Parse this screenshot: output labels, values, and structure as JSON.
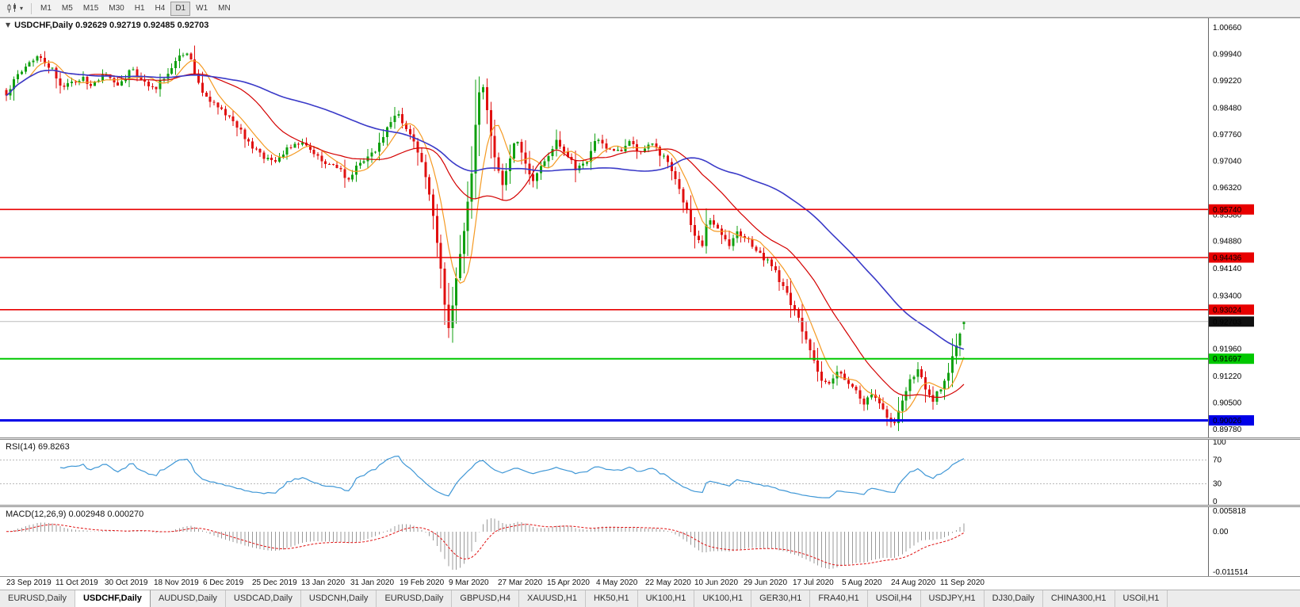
{
  "toolbar": {
    "timeframes": [
      {
        "label": "M1",
        "active": false
      },
      {
        "label": "M5",
        "active": false
      },
      {
        "label": "M15",
        "active": false
      },
      {
        "label": "M30",
        "active": false
      },
      {
        "label": "H1",
        "active": false
      },
      {
        "label": "H4",
        "active": false
      },
      {
        "label": "D1",
        "active": true
      },
      {
        "label": "W1",
        "active": false
      },
      {
        "label": "MN",
        "active": false
      }
    ]
  },
  "chart": {
    "marker_icon": "▼",
    "quote_line": "USDCHF,Daily 0.92629 0.92719 0.92485 0.92703",
    "price_axis": [
      "1.00660",
      "0.99940",
      "0.99220",
      "0.98480",
      "0.97760",
      "0.97040",
      "0.96320",
      "0.95580",
      "0.94880",
      "0.94140",
      "0.93400",
      "0.92660",
      "0.91960",
      "0.91220",
      "0.90500",
      "0.89780"
    ],
    "levels": [
      {
        "price": 0.9574,
        "label": "0.95740",
        "colorKey": "level_red",
        "width": 1.6
      },
      {
        "price": 0.94436,
        "label": "0.94436",
        "colorKey": "level_red",
        "width": 1.6
      },
      {
        "price": 0.93024,
        "label": "0.93024",
        "colorKey": "level_red",
        "width": 1.6
      },
      {
        "price": 0.91697,
        "label": "0.91697",
        "colorKey": "level_green",
        "width": 2
      },
      {
        "price": 0.90026,
        "label": "0.90026",
        "colorKey": "level_blue",
        "width": 3
      }
    ],
    "current_price": {
      "value": 0.92703,
      "label": "0.92703"
    }
  },
  "rsi": {
    "label": "RSI(14) 69.8263",
    "axis_labels": [
      "100",
      "70",
      "30",
      "0"
    ]
  },
  "macd": {
    "label": "MACD(12,26,9) 0.002948 0.000270",
    "axis_labels": [
      "0.005818",
      "0.00",
      "-0.011514"
    ]
  },
  "dates": [
    "23 Sep 2019",
    "11 Oct 2019",
    "30 Oct 2019",
    "18 Nov 2019",
    "6 Dec 2019",
    "25 Dec 2019",
    "13 Jan 2020",
    "31 Jan 2020",
    "19 Feb 2020",
    "9 Mar 2020",
    "27 Mar 2020",
    "15 Apr 2020",
    "4 May 2020",
    "22 May 2020",
    "10 Jun 2020",
    "29 Jun 2020",
    "17 Jul 2020",
    "5 Aug 2020",
    "24 Aug 2020",
    "11 Sep 2020"
  ],
  "tabs": [
    {
      "label": "EURUSD,Daily",
      "active": false
    },
    {
      "label": "USDCHF,Daily",
      "active": true
    },
    {
      "label": "AUDUSD,Daily",
      "active": false
    },
    {
      "label": "USDCAD,Daily",
      "active": false
    },
    {
      "label": "USDCNH,Daily",
      "active": false
    },
    {
      "label": "EURUSD,Daily",
      "active": false
    },
    {
      "label": "GBPUSD,H4",
      "active": false
    },
    {
      "label": "XAUUSD,H1",
      "active": false
    },
    {
      "label": "HK50,H1",
      "active": false
    },
    {
      "label": "UK100,H1",
      "active": false
    },
    {
      "label": "UK100,H1",
      "active": false
    },
    {
      "label": "GER30,H1",
      "active": false
    },
    {
      "label": "FRA40,H1",
      "active": false
    },
    {
      "label": "USOil,H4",
      "active": false
    },
    {
      "label": "USDJPY,H1",
      "active": false
    },
    {
      "label": "DJ30,Daily",
      "active": false
    },
    {
      "label": "CHINA300,H1",
      "active": false
    },
    {
      "label": "USOil,H1",
      "active": false
    }
  ],
  "colors": {
    "candle_up": "#10A010",
    "candle_down": "#E01010",
    "ma_fast": "#F59A23",
    "ma_mid": "#D40000",
    "ma_slow": "#3A3AC8",
    "rsi_line": "#3F97D6",
    "macd_bar": "#9A9A9A",
    "macd_signal": "#E01010",
    "level_red": "#E80000",
    "level_green": "#00C800",
    "level_blue": "#0000E8",
    "current_badge_bg": "#101010"
  },
  "chart_data": {
    "type": "candlestick",
    "symbol": "USDCHF",
    "timeframe": "Daily",
    "quote": {
      "open": 0.92629,
      "high": 0.92719,
      "low": 0.92485,
      "close": 0.92703
    },
    "y_range": [
      0.8978,
      1.0066
    ],
    "horizontal_levels": [
      0.9574,
      0.94436,
      0.93024,
      0.91697,
      0.90026
    ],
    "indicators": {
      "rsi": {
        "period": 14,
        "current": 69.8263,
        "levels": [
          70,
          30
        ],
        "range": [
          0,
          100
        ]
      },
      "macd": {
        "fast": 12,
        "slow": 26,
        "signal": 9,
        "current_main": 0.002948,
        "current_signal": 0.00027,
        "range": [
          -0.011514,
          0.005818
        ]
      }
    },
    "price_path": [
      [
        0.0,
        0.988
      ],
      [
        0.01,
        0.993
      ],
      [
        0.022,
        0.9975
      ],
      [
        0.035,
        0.999
      ],
      [
        0.05,
        0.9945
      ],
      [
        0.06,
        0.99
      ],
      [
        0.075,
        0.993
      ],
      [
        0.09,
        0.9915
      ],
      [
        0.105,
        0.9945
      ],
      [
        0.118,
        0.9905
      ],
      [
        0.13,
        0.9955
      ],
      [
        0.142,
        0.992
      ],
      [
        0.155,
        0.99
      ],
      [
        0.17,
        0.9945
      ],
      [
        0.182,
        0.9995
      ],
      [
        0.19,
        1.0005
      ],
      [
        0.2,
        0.9915
      ],
      [
        0.212,
        0.987
      ],
      [
        0.225,
        0.984
      ],
      [
        0.24,
        0.98
      ],
      [
        0.255,
        0.975
      ],
      [
        0.27,
        0.971
      ],
      [
        0.283,
        0.97
      ],
      [
        0.295,
        0.9745
      ],
      [
        0.308,
        0.9755
      ],
      [
        0.32,
        0.972
      ],
      [
        0.335,
        0.97
      ],
      [
        0.348,
        0.969
      ],
      [
        0.356,
        0.9655
      ],
      [
        0.365,
        0.9685
      ],
      [
        0.378,
        0.9715
      ],
      [
        0.39,
        0.975
      ],
      [
        0.402,
        0.9815
      ],
      [
        0.41,
        0.983
      ],
      [
        0.42,
        0.978
      ],
      [
        0.432,
        0.972
      ],
      [
        0.443,
        0.96
      ],
      [
        0.452,
        0.945
      ],
      [
        0.458,
        0.931
      ],
      [
        0.463,
        0.924
      ],
      [
        0.468,
        0.937
      ],
      [
        0.474,
        0.945
      ],
      [
        0.48,
        0.956
      ],
      [
        0.487,
        0.97
      ],
      [
        0.492,
        0.988
      ],
      [
        0.497,
        0.992
      ],
      [
        0.503,
        0.982
      ],
      [
        0.51,
        0.972
      ],
      [
        0.518,
        0.964
      ],
      [
        0.525,
        0.97
      ],
      [
        0.532,
        0.978
      ],
      [
        0.54,
        0.972
      ],
      [
        0.548,
        0.9645
      ],
      [
        0.556,
        0.969
      ],
      [
        0.565,
        0.972
      ],
      [
        0.575,
        0.976
      ],
      [
        0.585,
        0.973
      ],
      [
        0.595,
        0.968
      ],
      [
        0.605,
        0.97
      ],
      [
        0.615,
        0.976
      ],
      [
        0.625,
        0.9745
      ],
      [
        0.638,
        0.973
      ],
      [
        0.65,
        0.9755
      ],
      [
        0.662,
        0.9725
      ],
      [
        0.675,
        0.975
      ],
      [
        0.688,
        0.971
      ],
      [
        0.698,
        0.966
      ],
      [
        0.708,
        0.959
      ],
      [
        0.718,
        0.951
      ],
      [
        0.726,
        0.947
      ],
      [
        0.733,
        0.9555
      ],
      [
        0.74,
        0.953
      ],
      [
        0.748,
        0.95
      ],
      [
        0.755,
        0.948
      ],
      [
        0.763,
        0.951
      ],
      [
        0.77,
        0.9505
      ],
      [
        0.778,
        0.9475
      ],
      [
        0.788,
        0.945
      ],
      [
        0.798,
        0.943
      ],
      [
        0.808,
        0.938
      ],
      [
        0.818,
        0.933
      ],
      [
        0.828,
        0.927
      ],
      [
        0.838,
        0.92
      ],
      [
        0.848,
        0.913
      ],
      [
        0.858,
        0.909
      ],
      [
        0.868,
        0.913
      ],
      [
        0.878,
        0.911
      ],
      [
        0.888,
        0.9085
      ],
      [
        0.895,
        0.905
      ],
      [
        0.903,
        0.9075
      ],
      [
        0.912,
        0.904
      ],
      [
        0.92,
        0.901
      ],
      [
        0.928,
        0.9
      ],
      [
        0.936,
        0.906
      ],
      [
        0.944,
        0.911
      ],
      [
        0.952,
        0.9145
      ],
      [
        0.96,
        0.908
      ],
      [
        0.968,
        0.906
      ],
      [
        0.976,
        0.909
      ],
      [
        0.984,
        0.914
      ],
      [
        0.992,
        0.921
      ],
      [
        1.0,
        0.927
      ]
    ]
  }
}
